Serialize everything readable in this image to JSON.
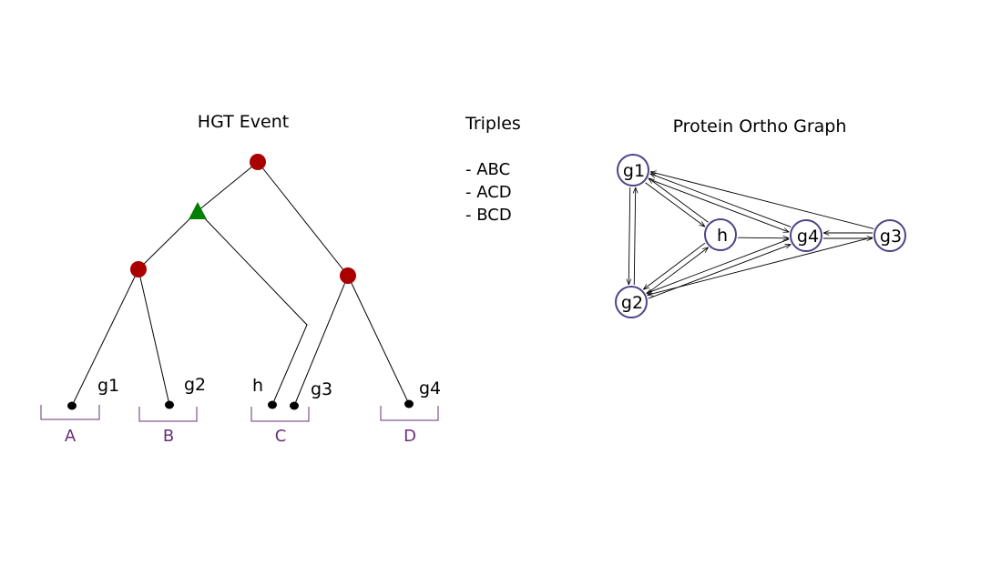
{
  "tree": {
    "title": "HGT Event",
    "genes": [
      "g1",
      "g2",
      "h",
      "g3",
      "g4"
    ],
    "species": [
      "A",
      "B",
      "C",
      "D"
    ],
    "speciation_color": "#aa0000",
    "hgt_color": "#008000",
    "species_color": "#6b2d7a"
  },
  "triples": {
    "title": "Triples",
    "items": [
      "- ABC",
      "- ACD",
      "- BCD"
    ]
  },
  "graph": {
    "title": "Protein Ortho Graph",
    "nodes": [
      "g1",
      "h",
      "g4",
      "g3",
      "g2"
    ],
    "node_color": "#4b4588",
    "edges": [
      [
        "g1",
        "h"
      ],
      [
        "h",
        "g1"
      ],
      [
        "g1",
        "g4"
      ],
      [
        "g4",
        "g1"
      ],
      [
        "g1",
        "g2"
      ],
      [
        "g2",
        "g1"
      ],
      [
        "g3",
        "g1"
      ],
      [
        "h",
        "g4"
      ],
      [
        "g2",
        "h"
      ],
      [
        "h",
        "g2"
      ],
      [
        "g2",
        "g4"
      ],
      [
        "g4",
        "g2"
      ],
      [
        "g3",
        "g2"
      ],
      [
        "g4",
        "g3"
      ],
      [
        "g3",
        "g4"
      ]
    ]
  }
}
